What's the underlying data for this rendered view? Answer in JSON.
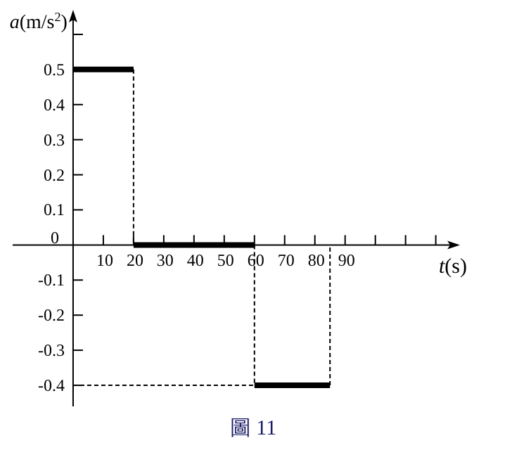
{
  "chart_data": {
    "type": "step",
    "xlabel": "*t*(s)",
    "ylabel": "*a*(m/s$^{2}$)",
    "x": [
      0,
      20,
      60,
      85
    ],
    "series": [
      {
        "color": "#000000",
        "values": [
          0.5,
          0,
          -0.4,
          0
        ]
      }
    ],
    "xlim": [
      -20,
      128
    ],
    "ylim": [
      -0.46,
      0.67
    ],
    "xticks": [
      10,
      20,
      30,
      40,
      50,
      60,
      70,
      80,
      90,
      {
        "value": 100,
        "label": null
      },
      {
        "value": 110,
        "label": null
      },
      {
        "value": 120,
        "label": null
      }
    ],
    "yticks": [
      -0.4,
      -0.3,
      -0.2,
      -0.1,
      0,
      0.1,
      0.2,
      0.3,
      0.4,
      0.5,
      {
        "value": 0.6,
        "label": null
      }
    ],
    "ref_lines": [
      {
        "axis": "y",
        "value": -0.4,
        "line_style": "dashed"
      }
    ],
    "annotations": [
      "圖 11"
    ]
  }
}
